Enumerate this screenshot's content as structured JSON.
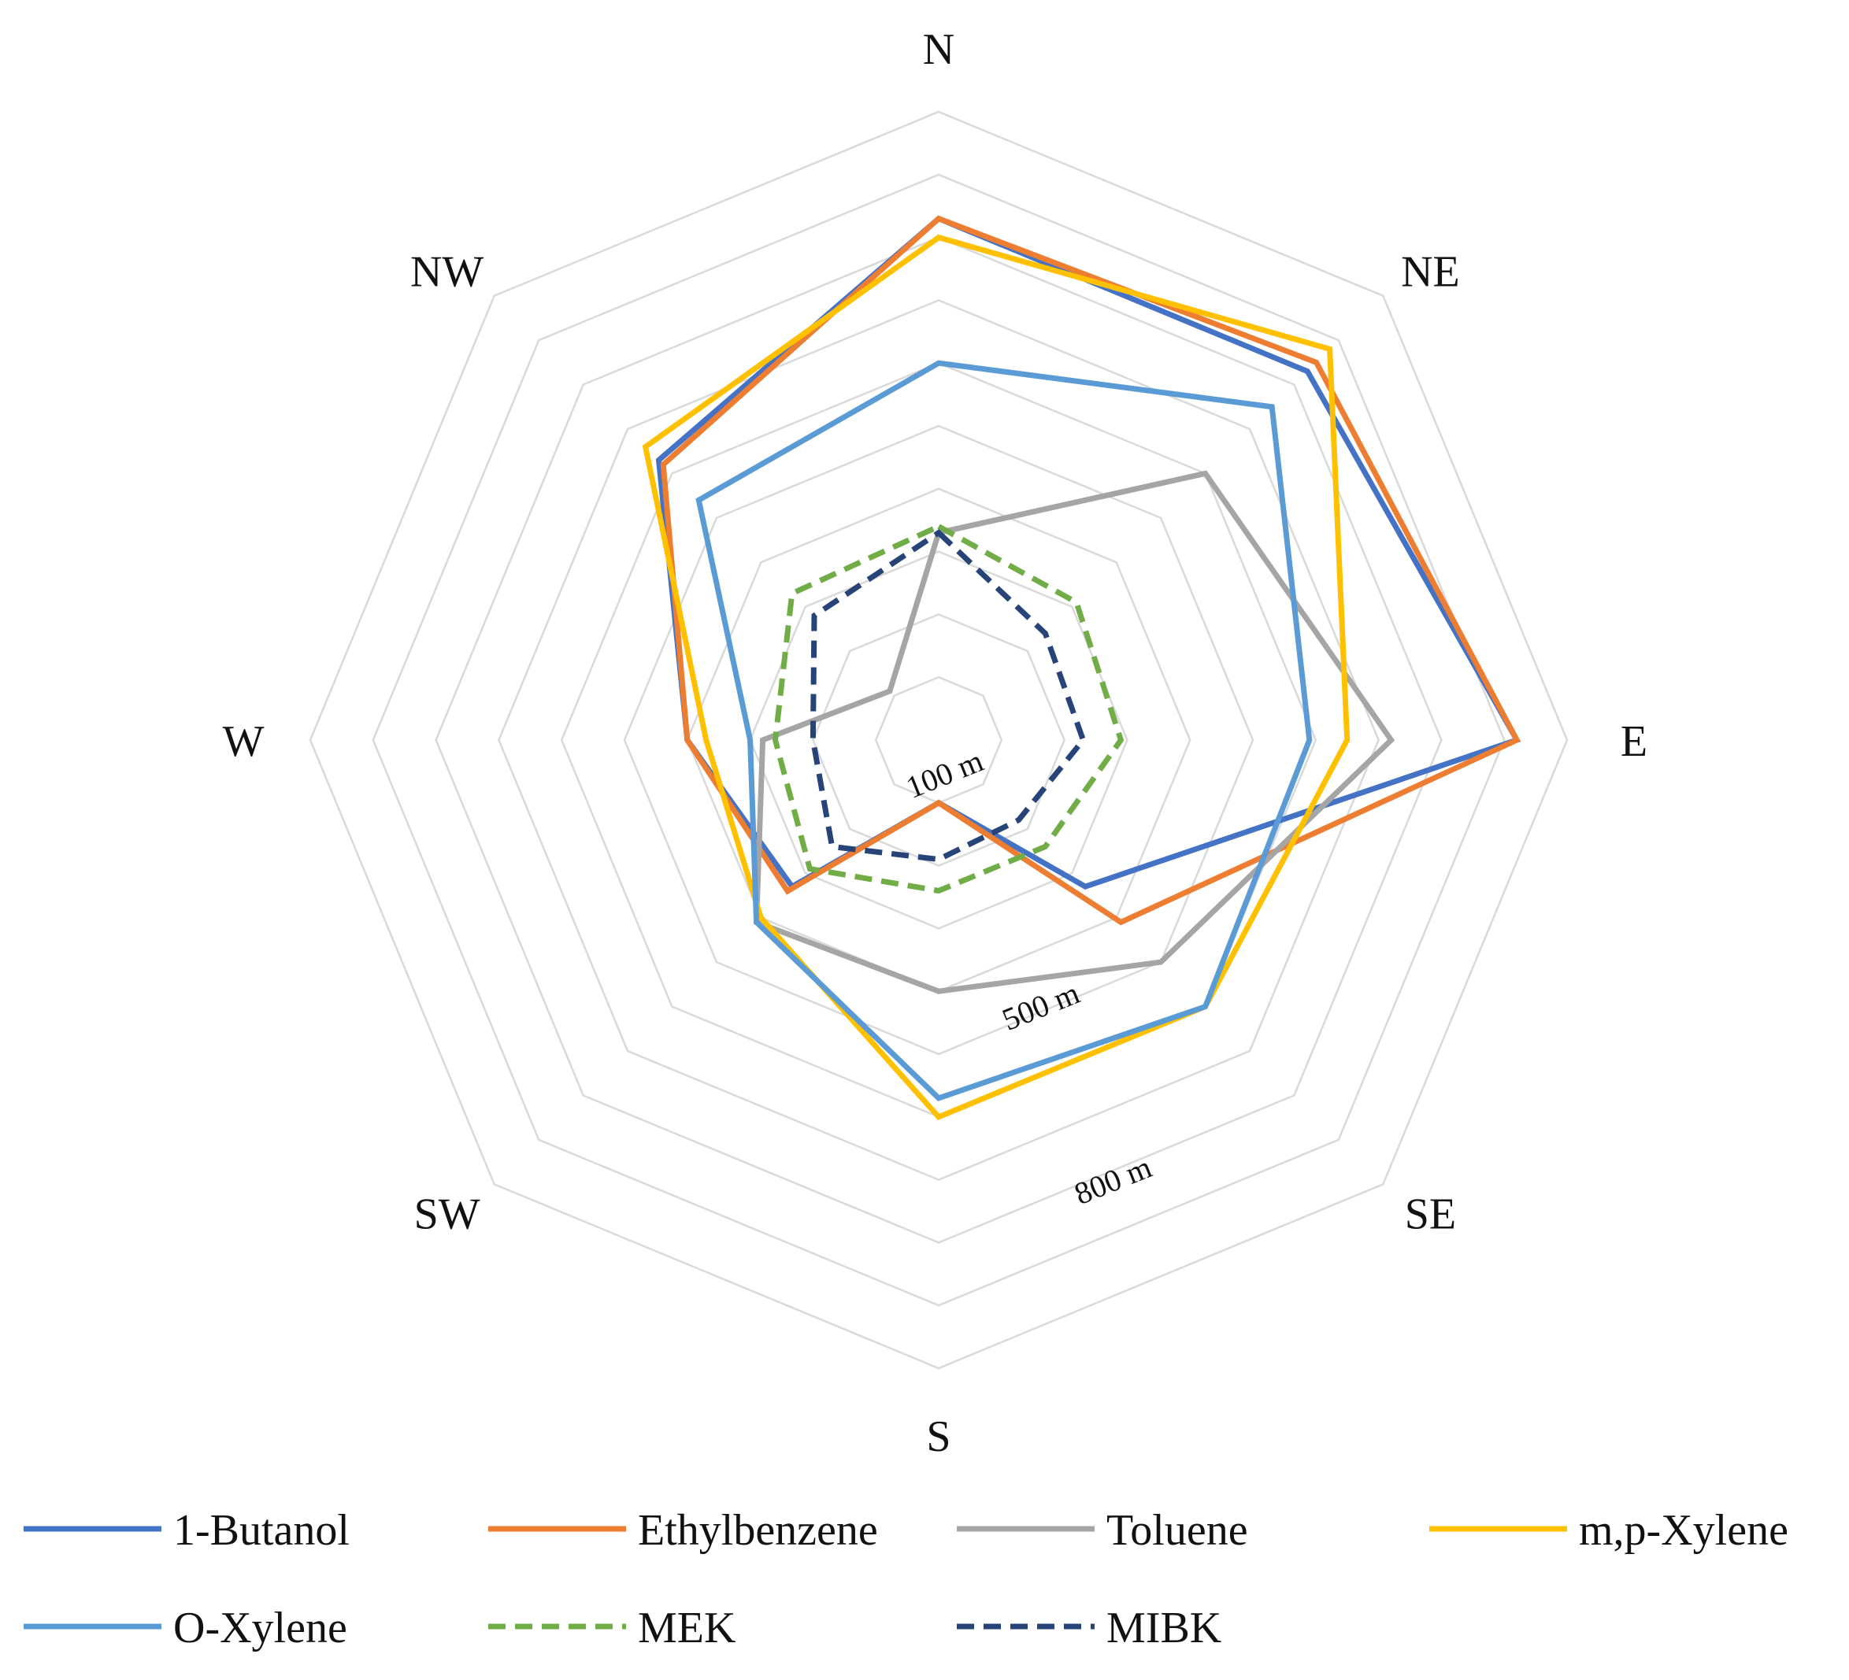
{
  "chart_data": {
    "type": "radar",
    "axes": [
      "N",
      "NE",
      "E",
      "SE",
      "S",
      "SW",
      "W",
      "NW"
    ],
    "rings": [
      100,
      200,
      300,
      400,
      500,
      600,
      700,
      800,
      900,
      1000
    ],
    "range": [
      0,
      1000
    ],
    "ring_labels": [
      {
        "value": 100,
        "text": "100 m"
      },
      {
        "value": 500,
        "text": "500 m"
      },
      {
        "value": 800,
        "text": "800 m"
      }
    ],
    "series": [
      {
        "name": "1-Butanol",
        "color": "#4472C4",
        "dash": false,
        "values": [
          830,
          830,
          920,
          330,
          100,
          330,
          400,
          630
        ]
      },
      {
        "name": "Ethylbenzene",
        "color": "#ED7D31",
        "dash": false,
        "values": [
          830,
          850,
          920,
          410,
          100,
          340,
          400,
          620
        ]
      },
      {
        "name": "Toluene",
        "color": "#A5A5A5",
        "dash": false,
        "values": [
          330,
          600,
          720,
          500,
          400,
          410,
          280,
          110
        ]
      },
      {
        "name": "m,p-Xylene",
        "color": "#FFC000",
        "dash": false,
        "values": [
          800,
          880,
          650,
          600,
          600,
          400,
          370,
          660
        ]
      },
      {
        "name": "O-Xylene",
        "color": "#5B9BD5",
        "dash": false,
        "values": [
          600,
          750,
          590,
          600,
          570,
          410,
          300,
          540
        ]
      },
      {
        "name": "MEK",
        "color": "#70AD47",
        "dash": true,
        "values": [
          340,
          310,
          290,
          240,
          240,
          290,
          260,
          330
        ]
      },
      {
        "name": "MIBK",
        "color": "#264478",
        "dash": true,
        "values": [
          330,
          240,
          230,
          180,
          190,
          240,
          200,
          280
        ]
      }
    ]
  }
}
